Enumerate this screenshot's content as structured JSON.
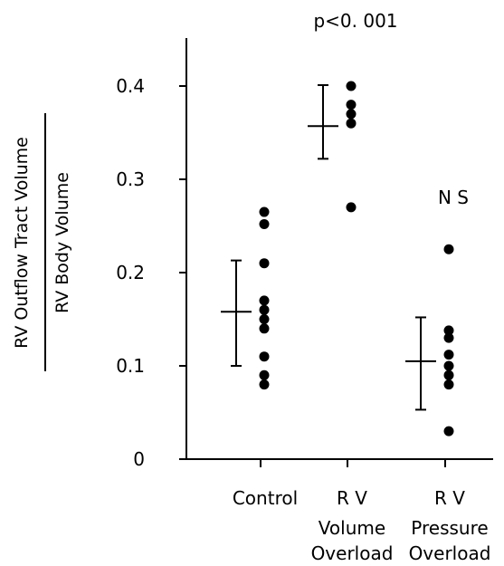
{
  "chart_data": {
    "type": "scatter",
    "ylabel_numerator": "RV Outflow Tract Volume",
    "ylabel_denominator": "RV Body Volume",
    "ylim": [
      0,
      0.45
    ],
    "yticks": [
      {
        "value": 0,
        "label": "0"
      },
      {
        "value": 0.1,
        "label": "0.1"
      },
      {
        "value": 0.2,
        "label": "0.2"
      },
      {
        "value": 0.3,
        "label": "0.3"
      },
      {
        "value": 0.4,
        "label": "0.4"
      }
    ],
    "groups": [
      {
        "label_lines": [
          "Control"
        ],
        "points": [
          0.265,
          0.252,
          0.21,
          0.17,
          0.16,
          0.15,
          0.14,
          0.11,
          0.09,
          0.08
        ],
        "mean": 0.158,
        "sd_upper": 0.213,
        "sd_lower": 0.1
      },
      {
        "label_lines": [
          "R  V",
          "Volume",
          "Overload"
        ],
        "points": [
          0.4,
          0.38,
          0.37,
          0.36,
          0.27
        ],
        "mean": 0.357,
        "sd_upper": 0.401,
        "sd_lower": 0.322,
        "annotation": "p<0. 001"
      },
      {
        "label_lines": [
          "R  V",
          "Pressure",
          "Overload"
        ],
        "points": [
          0.225,
          0.138,
          0.13,
          0.112,
          0.1,
          0.09,
          0.08,
          0.03
        ],
        "mean": 0.105,
        "sd_upper": 0.152,
        "sd_lower": 0.053,
        "annotation": "N S"
      }
    ]
  }
}
